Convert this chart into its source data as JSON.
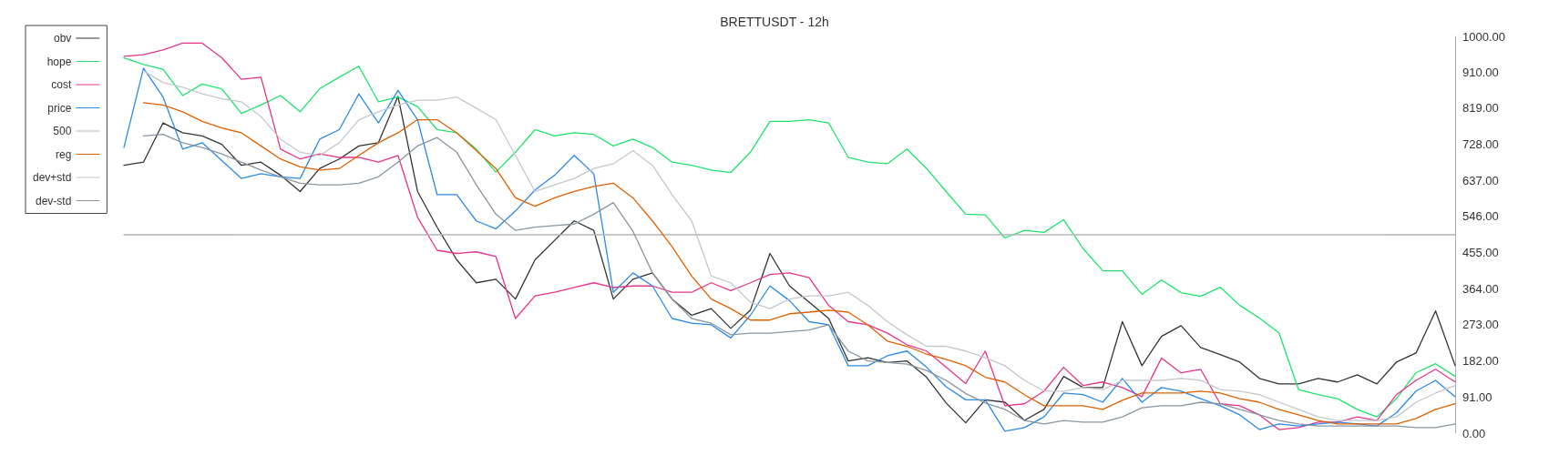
{
  "chart_data": {
    "type": "line",
    "title": "BRETTUSDT - 12h",
    "categories": [
      null,
      null,
      null,
      null,
      null,
      null,
      null,
      null,
      null,
      null,
      null,
      null,
      null,
      null,
      null,
      null,
      null,
      null,
      null,
      null,
      null,
      null,
      null,
      null,
      null,
      null,
      null,
      null,
      null,
      null,
      null,
      null,
      null,
      null,
      null,
      null,
      null,
      null,
      null,
      null,
      null,
      null,
      null,
      null,
      null,
      null,
      null,
      null,
      null,
      null,
      null,
      null,
      null,
      null,
      null,
      null,
      null,
      null,
      null,
      null,
      null,
      null,
      null,
      null,
      null,
      null,
      null,
      null,
      null
    ],
    "series": [
      {
        "name": "obv",
        "color": "#333333",
        "values": [
          675,
          683,
          782,
          757,
          749,
          728,
          675,
          683,
          650,
          609,
          667,
          691,
          724,
          732,
          849,
          609,
          519,
          437,
          379,
          388,
          338,
          437,
          486,
          535,
          511,
          338,
          388,
          404,
          338,
          297,
          314,
          264,
          310,
          453,
          371,
          330,
          289,
          182,
          190,
          178,
          182,
          141,
          76,
          26,
          84,
          78,
          32,
          60,
          143,
          115,
          115,
          281,
          170,
          244,
          271,
          216,
          198,
          179,
          138,
          124,
          124,
          138,
          129,
          147,
          124,
          179,
          202,
          308,
          170
        ]
      },
      {
        "name": "hope",
        "color": "#1ee36b",
        "values": [
          946,
          929,
          917,
          851,
          880,
          868,
          806,
          827,
          851,
          810,
          868,
          897,
          925,
          835,
          847,
          823,
          765,
          757,
          716,
          658,
          708,
          765,
          749,
          757,
          753,
          724,
          741,
          720,
          683,
          675,
          663,
          657,
          708,
          786,
          786,
          790,
          782,
          695,
          683,
          679,
          716,
          667,
          609,
          552,
          550,
          492,
          511,
          506,
          538,
          465,
          409,
          409,
          350,
          386,
          354,
          345,
          368,
          322,
          290,
          253,
          110,
          97,
          87,
          60,
          41,
          87,
          152,
          175,
          143
        ]
      },
      {
        "name": "cost",
        "color": "#e6348a",
        "values": [
          950,
          954,
          966,
          983,
          983,
          946,
          892,
          897,
          716,
          691,
          704,
          695,
          695,
          683,
          700,
          544,
          461,
          453,
          457,
          445,
          289,
          346,
          355,
          367,
          379,
          367,
          371,
          371,
          355,
          355,
          379,
          359,
          379,
          400,
          404,
          392,
          322,
          281,
          273,
          252,
          223,
          207,
          166,
          125,
          207,
          69,
          74,
          106,
          166,
          120,
          129,
          115,
          92,
          189,
          152,
          161,
          74,
          69,
          46,
          9,
          14,
          28,
          28,
          41,
          32,
          97,
          133,
          161,
          129
        ]
      },
      {
        "name": "price",
        "color": "#2b8ae6",
        "values": [
          720,
          920,
          847,
          716,
          732,
          687,
          642,
          654,
          646,
          642,
          741,
          765,
          855,
          782,
          864,
          790,
          601,
          601,
          535,
          515,
          560,
          613,
          650,
          700,
          654,
          355,
          404,
          371,
          289,
          277,
          273,
          240,
          297,
          371,
          334,
          281,
          273,
          170,
          170,
          195,
          207,
          166,
          117,
          84,
          84,
          5,
          14,
          41,
          101,
          97,
          78,
          138,
          78,
          115,
          106,
          87,
          69,
          46,
          9,
          23,
          18,
          23,
          28,
          23,
          18,
          51,
          106,
          133,
          92
        ]
      },
      {
        "name": "500",
        "color": "#b4b4b4",
        "values": [
          500,
          500,
          500,
          500,
          500,
          500,
          500,
          500,
          500,
          500,
          500,
          500,
          500,
          500,
          500,
          500,
          500,
          500,
          500,
          500,
          500,
          500,
          500,
          500,
          500,
          500,
          500,
          500,
          500,
          500,
          500,
          500,
          500,
          500,
          500,
          500,
          500,
          500,
          500,
          500,
          500,
          500,
          500,
          500,
          500,
          500,
          500,
          500,
          500,
          500,
          500,
          500,
          500,
          500,
          500,
          500,
          500,
          500,
          500,
          500,
          500,
          500,
          500,
          500,
          500,
          500,
          500,
          500,
          500
        ]
      },
      {
        "name": "reg",
        "color": "#e06000",
        "values": [
          null,
          833,
          827,
          810,
          786,
          769,
          757,
          724,
          691,
          671,
          663,
          667,
          700,
          732,
          757,
          790,
          790,
          757,
          712,
          667,
          593,
          572,
          593,
          609,
          622,
          630,
          593,
          535,
          470,
          396,
          338,
          314,
          285,
          285,
          301,
          305,
          310,
          305,
          273,
          232,
          219,
          199,
          186,
          170,
          141,
          129,
          97,
          69,
          69,
          69,
          60,
          83,
          101,
          101,
          101,
          106,
          101,
          87,
          78,
          60,
          46,
          32,
          23,
          23,
          23,
          23,
          37,
          60,
          74
        ]
      },
      {
        "name": "dev+std",
        "color": "#c3c8cd",
        "values": [
          null,
          913,
          884,
          872,
          855,
          843,
          835,
          798,
          741,
          708,
          700,
          732,
          790,
          810,
          827,
          839,
          839,
          847,
          819,
          790,
          700,
          609,
          626,
          642,
          667,
          679,
          712,
          675,
          601,
          535,
          396,
          379,
          330,
          314,
          338,
          346,
          346,
          355,
          322,
          281,
          248,
          219,
          219,
          207,
          190,
          170,
          133,
          106,
          106,
          115,
          110,
          133,
          133,
          133,
          138,
          133,
          110,
          106,
          97,
          78,
          60,
          41,
          32,
          32,
          32,
          41,
          78,
          101,
          120
        ]
      },
      {
        "name": "dev-std",
        "color": "#8a96a0",
        "values": [
          null,
          749,
          753,
          732,
          720,
          704,
          683,
          663,
          646,
          630,
          626,
          626,
          630,
          646,
          683,
          724,
          745,
          708,
          626,
          552,
          511,
          519,
          523,
          527,
          552,
          581,
          509,
          404,
          338,
          289,
          277,
          248,
          252,
          252,
          256,
          260,
          273,
          207,
          182,
          178,
          174,
          158,
          133,
          100,
          76,
          60,
          32,
          23,
          32,
          28,
          28,
          41,
          64,
          69,
          69,
          78,
          74,
          60,
          46,
          32,
          23,
          18,
          18,
          18,
          18,
          18,
          14,
          14,
          23
        ]
      }
    ],
    "ylim": [
      0,
      1000
    ],
    "yticks": [
      {
        "value": 0,
        "label": "0.00"
      },
      {
        "value": 91,
        "label": "91.00"
      },
      {
        "value": 182,
        "label": "182.00"
      },
      {
        "value": 273,
        "label": "273.00"
      },
      {
        "value": 364,
        "label": "364.00"
      },
      {
        "value": 455,
        "label": "455.00"
      },
      {
        "value": 546,
        "label": "546.00"
      },
      {
        "value": 637,
        "label": "637.00"
      },
      {
        "value": 728,
        "label": "728.00"
      },
      {
        "value": 819,
        "label": "819.00"
      },
      {
        "value": 910,
        "label": "910.00"
      },
      {
        "value": 1000,
        "label": "1000.00"
      }
    ],
    "tick_labels": "y",
    "legend": "top left",
    "marker": "none",
    "line_style": "solid"
  }
}
